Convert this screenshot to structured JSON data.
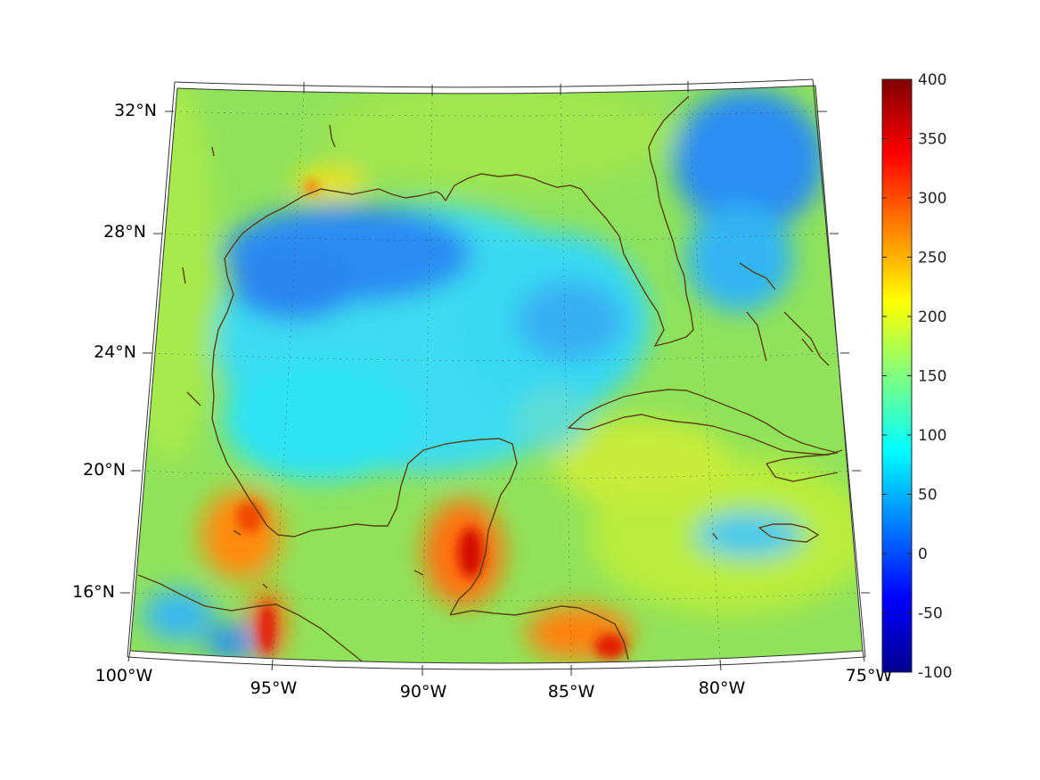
{
  "map": {
    "projection": "conic",
    "lon_range": [
      -100,
      -75
    ],
    "lat_range": [
      14,
      33
    ],
    "grid": true,
    "coastline_color": "#5a4210",
    "lat_labels": [
      "32°N",
      "28°N",
      "24°N",
      "20°N",
      "16°N"
    ],
    "lon_labels": [
      "100°W",
      "95°W",
      "90°W",
      "85°W",
      "80°W",
      "75°W"
    ]
  },
  "colorbar": {
    "colormap": "jet",
    "range": [
      -100,
      400
    ],
    "tick_labels": [
      "400",
      "350",
      "300",
      "250",
      "200",
      "150",
      "100",
      "50",
      "0",
      "-50",
      "-100"
    ]
  }
}
